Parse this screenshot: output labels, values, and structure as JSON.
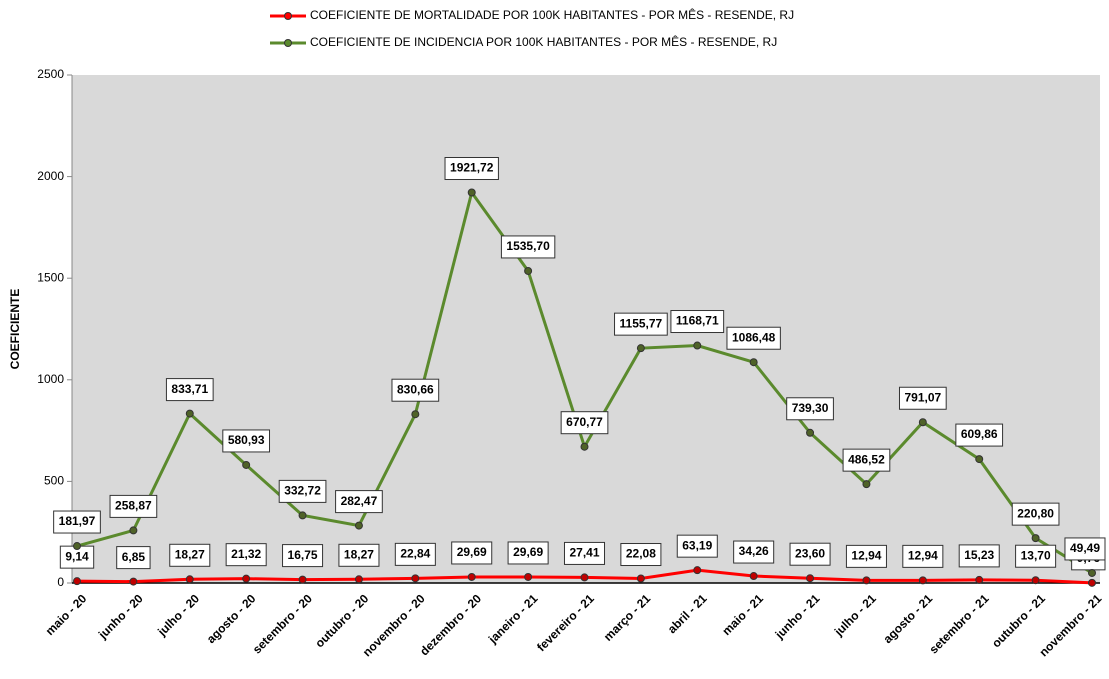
{
  "chart_data": {
    "type": "line",
    "y_label": "COEFICIENTE",
    "categories": [
      "maio - 20",
      "junho - 20",
      "julho - 20",
      "agosto - 20",
      "setembro - 20",
      "outubro - 20",
      "novembro - 20",
      "dezembro - 20",
      "janeiro - 21",
      "fevereiro - 21",
      "março - 21",
      "abril - 21",
      "maio - 21",
      "junho - 21",
      "julho - 21",
      "agosto - 21",
      "setembro - 21",
      "outubro - 21",
      "novembro - 21"
    ],
    "series": [
      {
        "name": "COEFICIENTE DE MORTALIDADE POR 100K HABITANTES - POR MÊS - RESENDE, RJ",
        "color": "#ff0000",
        "label_color": "#c00000",
        "values": [
          9.14,
          6.85,
          18.27,
          21.32,
          16.75,
          18.27,
          22.84,
          29.69,
          29.69,
          27.41,
          22.08,
          63.19,
          34.26,
          23.6,
          12.94,
          12.94,
          15.23,
          13.7,
          0.76
        ],
        "value_labels": [
          "9,14",
          "6,85",
          "18,27",
          "21,32",
          "16,75",
          "18,27",
          "22,84",
          "29,69",
          "29,69",
          "27,41",
          "22,08",
          "63,19",
          "34,26",
          "23,60",
          "12,94",
          "12,94",
          "15,23",
          "13,70",
          "0,76"
        ]
      },
      {
        "name": "COEFICIENTE DE INCIDENCIA POR 100K HABITANTES - POR MÊS - RESENDE, RJ",
        "color": "#5b8a2d",
        "label_color": "#4f6228",
        "values": [
          181.97,
          258.87,
          833.71,
          580.93,
          332.72,
          282.47,
          830.66,
          1921.72,
          1535.7,
          670.77,
          1155.77,
          1168.71,
          1086.48,
          739.3,
          486.52,
          791.07,
          609.86,
          220.8,
          49.49
        ],
        "value_labels": [
          "181,97",
          "258,87",
          "833,71",
          "580,93",
          "332,72",
          "282,47",
          "830,66",
          "1921,72",
          "1535,70",
          "670,77",
          "1155,77",
          "1168,71",
          "1086,48",
          "739,30",
          "486,52",
          "791,07",
          "609,86",
          "220,80",
          "49,49"
        ]
      }
    ],
    "ylim": [
      0,
      2500
    ],
    "yticks": [
      0,
      500,
      1000,
      1500,
      2000,
      2500
    ],
    "plot_background": "#d9d9d9",
    "legend": "top"
  }
}
